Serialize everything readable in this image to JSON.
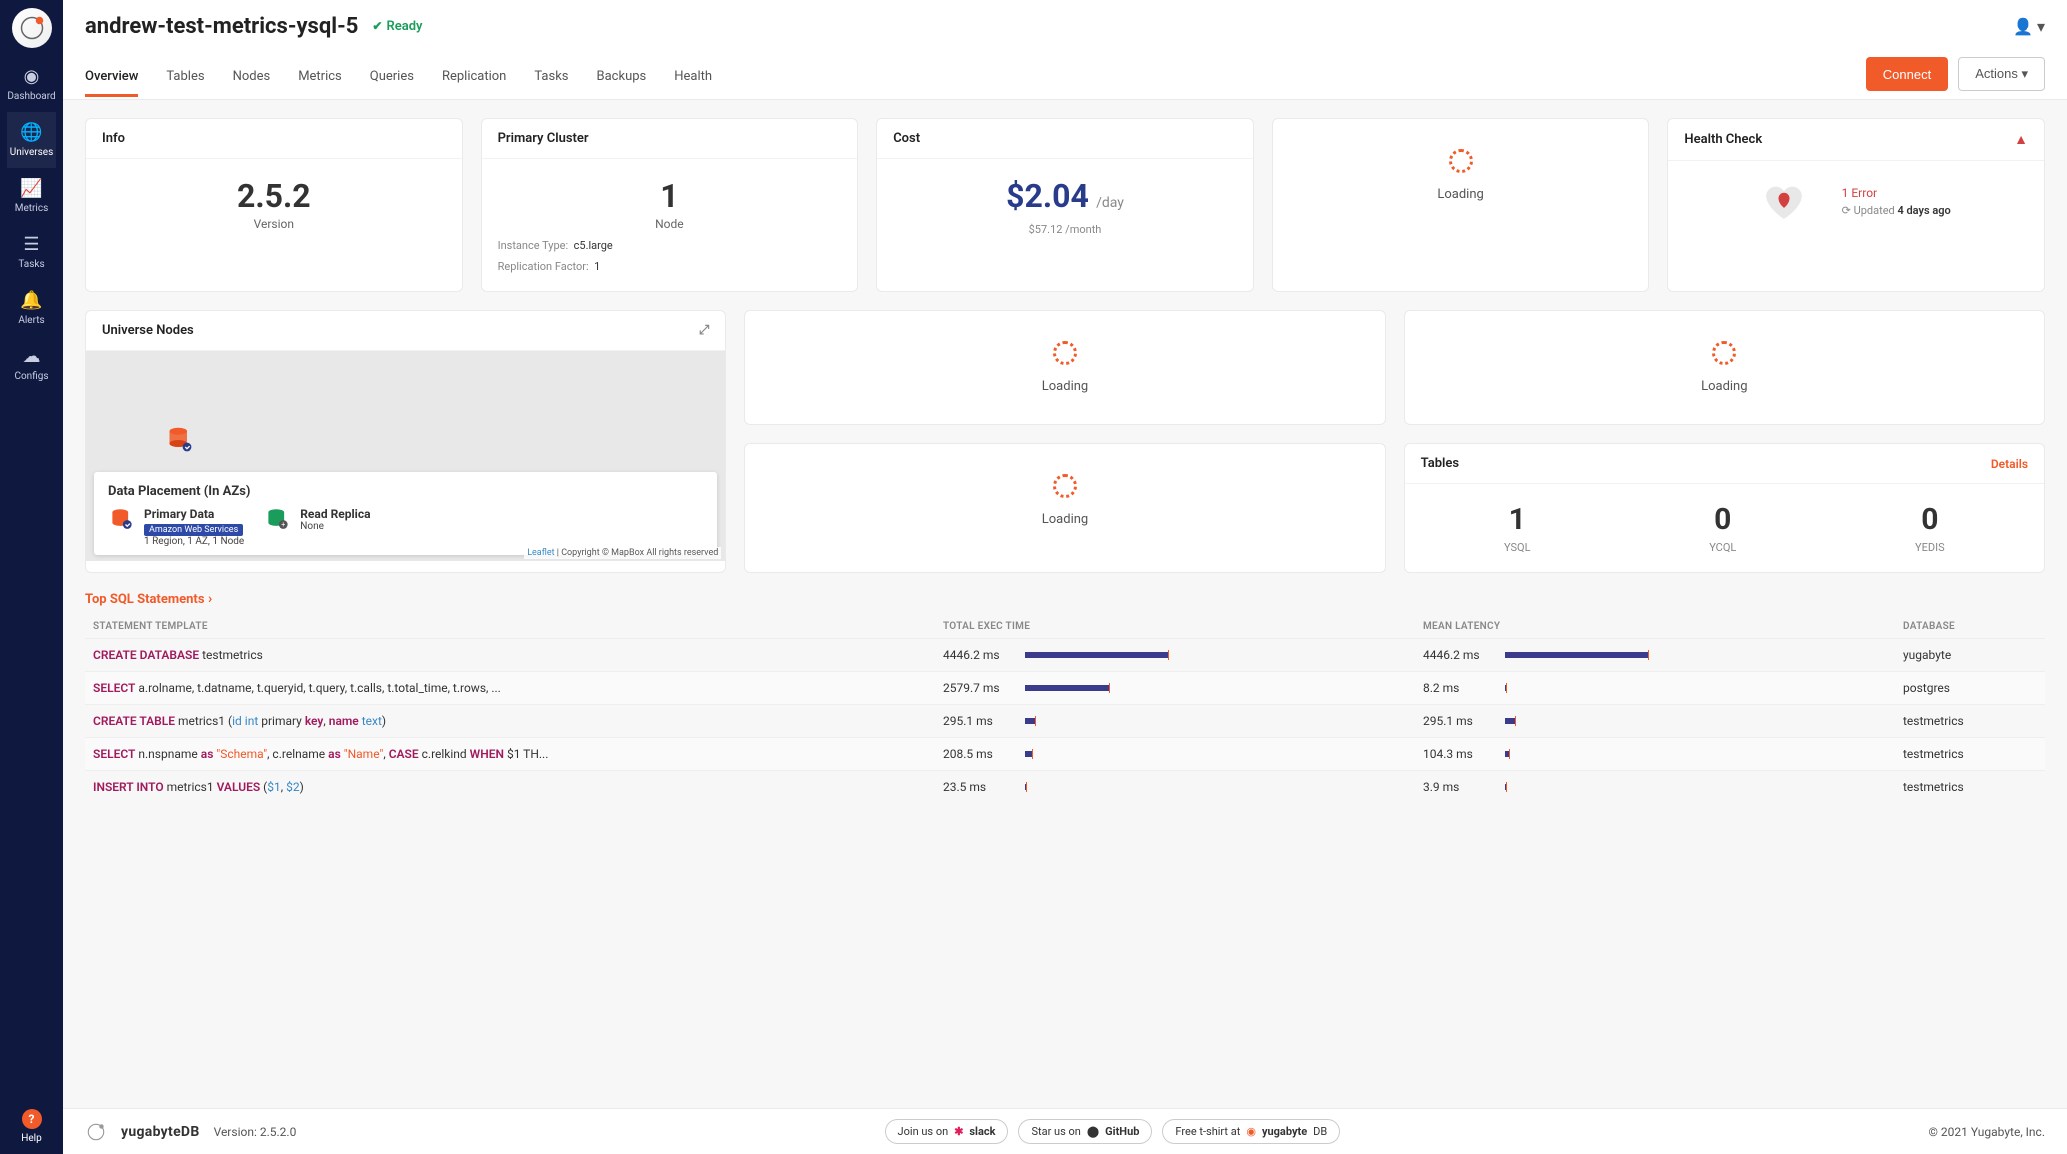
{
  "colors": {
    "accent": "#f15a29",
    "sidebar_bg": "#0f1940",
    "cost_color": "#293c8c",
    "bar_fill": "#3b3b8c",
    "bar_tick": "#f15a29",
    "success": "#1a9d5a",
    "error": "#d34040",
    "badge_bg": "#2d4aa8",
    "map_bg": "#e8e8e8",
    "link": "#3588c7"
  },
  "sidebar": {
    "items": [
      {
        "label": "Dashboard",
        "icon": "◉"
      },
      {
        "label": "Universes",
        "icon": "🌐"
      },
      {
        "label": "Metrics",
        "icon": "📈"
      },
      {
        "label": "Tasks",
        "icon": "☰"
      },
      {
        "label": "Alerts",
        "icon": "🔔"
      },
      {
        "label": "Configs",
        "icon": "☁"
      }
    ],
    "active_index": 1,
    "help_label": "Help"
  },
  "header": {
    "title": "andrew-test-metrics-ysql-5",
    "status": "Ready",
    "tabs": [
      "Overview",
      "Tables",
      "Nodes",
      "Metrics",
      "Queries",
      "Replication",
      "Tasks",
      "Backups",
      "Health"
    ],
    "active_tab": 0,
    "connect_label": "Connect",
    "actions_label": "Actions"
  },
  "cards": {
    "info": {
      "title": "Info",
      "version": "2.5.2",
      "version_label": "Version"
    },
    "primary": {
      "title": "Primary Cluster",
      "node_count": "1",
      "node_label": "Node",
      "instance_type_label": "Instance Type:",
      "instance_type": "c5.large",
      "rf_label": "Replication Factor:",
      "rf": "1"
    },
    "cost": {
      "title": "Cost",
      "amount": "$2.04",
      "per_day": "/day",
      "per_month": "$57.12 /month"
    },
    "health": {
      "title": "Health Check",
      "error_text": "1 Error",
      "updated_label": "Updated",
      "updated_ts": "4 days ago"
    },
    "loading_label": "Loading",
    "nodes": {
      "title": "Universe Nodes",
      "placement_title": "Data Placement (In AZs)",
      "primary_label": "Primary Data",
      "primary_provider": "Amazon Web Services",
      "primary_detail": "1 Region, 1 AZ, 1 Node",
      "replica_label": "Read Replica",
      "replica_detail": "None",
      "attrib_link": "Leaflet",
      "attrib_text": " | Copyright © MapBox All rights reserved"
    },
    "tables": {
      "title": "Tables",
      "details_label": "Details",
      "counts": [
        {
          "n": "1",
          "label": "YSQL"
        },
        {
          "n": "0",
          "label": "YCQL"
        },
        {
          "n": "0",
          "label": "YEDIS"
        }
      ]
    }
  },
  "sql": {
    "heading": "Top SQL Statements",
    "columns": [
      "STATEMENT TEMPLATE",
      "TOTAL EXEC TIME",
      "MEAN LATENCY",
      "DATABASE"
    ],
    "rows": [
      {
        "stmt_html": "<span class='kw'>CREATE DATABASE</span> testmetrics",
        "exec_ms": "4446.2 ms",
        "exec_bar_pct": 65,
        "exec_tick_pct": 65,
        "lat_ms": "4446.2 ms",
        "lat_bar_pct": 65,
        "lat_tick_pct": 65,
        "db": "yugabyte"
      },
      {
        "stmt_html": "<span class='kw'>SELECT</span> a.rolname, t.datname, t.queryid, t.query, t.calls, t.total_time, t.rows, ...",
        "exec_ms": "2579.7 ms",
        "exec_bar_pct": 38,
        "exec_tick_pct": 38,
        "lat_ms": "8.2 ms",
        "lat_bar_pct": 0.5,
        "lat_tick_pct": 0.5,
        "db": "postgres"
      },
      {
        "stmt_html": "<span class='kw'>CREATE TABLE</span> metrics1 (<span class='typ'>id int</span> primary <span class='kw'>key</span>, <span class='kw'>name</span> <span class='typ'>text</span>)",
        "exec_ms": "295.1 ms",
        "exec_bar_pct": 4.5,
        "exec_tick_pct": 4.5,
        "lat_ms": "295.1 ms",
        "lat_bar_pct": 4.5,
        "lat_tick_pct": 4.5,
        "db": "testmetrics"
      },
      {
        "stmt_html": "<span class='kw'>SELECT</span> n.nspname <span class='kw'>as</span> <span class='str'>\"Schema\"</span>, c.relname <span class='kw'>as</span> <span class='str'>\"Name\"</span>, <span class='kw'>CASE</span> c.relkind <span class='kw'>WHEN</span> $1 TH...",
        "exec_ms": "208.5 ms",
        "exec_bar_pct": 3,
        "exec_tick_pct": 3,
        "lat_ms": "104.3 ms",
        "lat_bar_pct": 1.6,
        "lat_tick_pct": 1.6,
        "db": "testmetrics"
      },
      {
        "stmt_html": "<span class='kw'>INSERT INTO</span> metrics1 <span class='kw'>VALUES</span> (<span class='typ'>$1</span>, <span class='typ'>$2</span>)",
        "exec_ms": "23.5 ms",
        "exec_bar_pct": 0.5,
        "exec_tick_pct": 0.5,
        "lat_ms": "3.9 ms",
        "lat_bar_pct": 0.3,
        "lat_tick_pct": 0.3,
        "db": "testmetrics"
      }
    ]
  },
  "footer": {
    "brand": "yugabyteDB",
    "version_label": "Version: 2.5.2.0",
    "pills": [
      {
        "text": "Join us on",
        "service": "slack"
      },
      {
        "text": "Star us on",
        "service": "GitHub"
      },
      {
        "text": "Free t-shirt at",
        "service": "yugabyteDB"
      }
    ],
    "copyright": "© 2021 Yugabyte, Inc."
  }
}
